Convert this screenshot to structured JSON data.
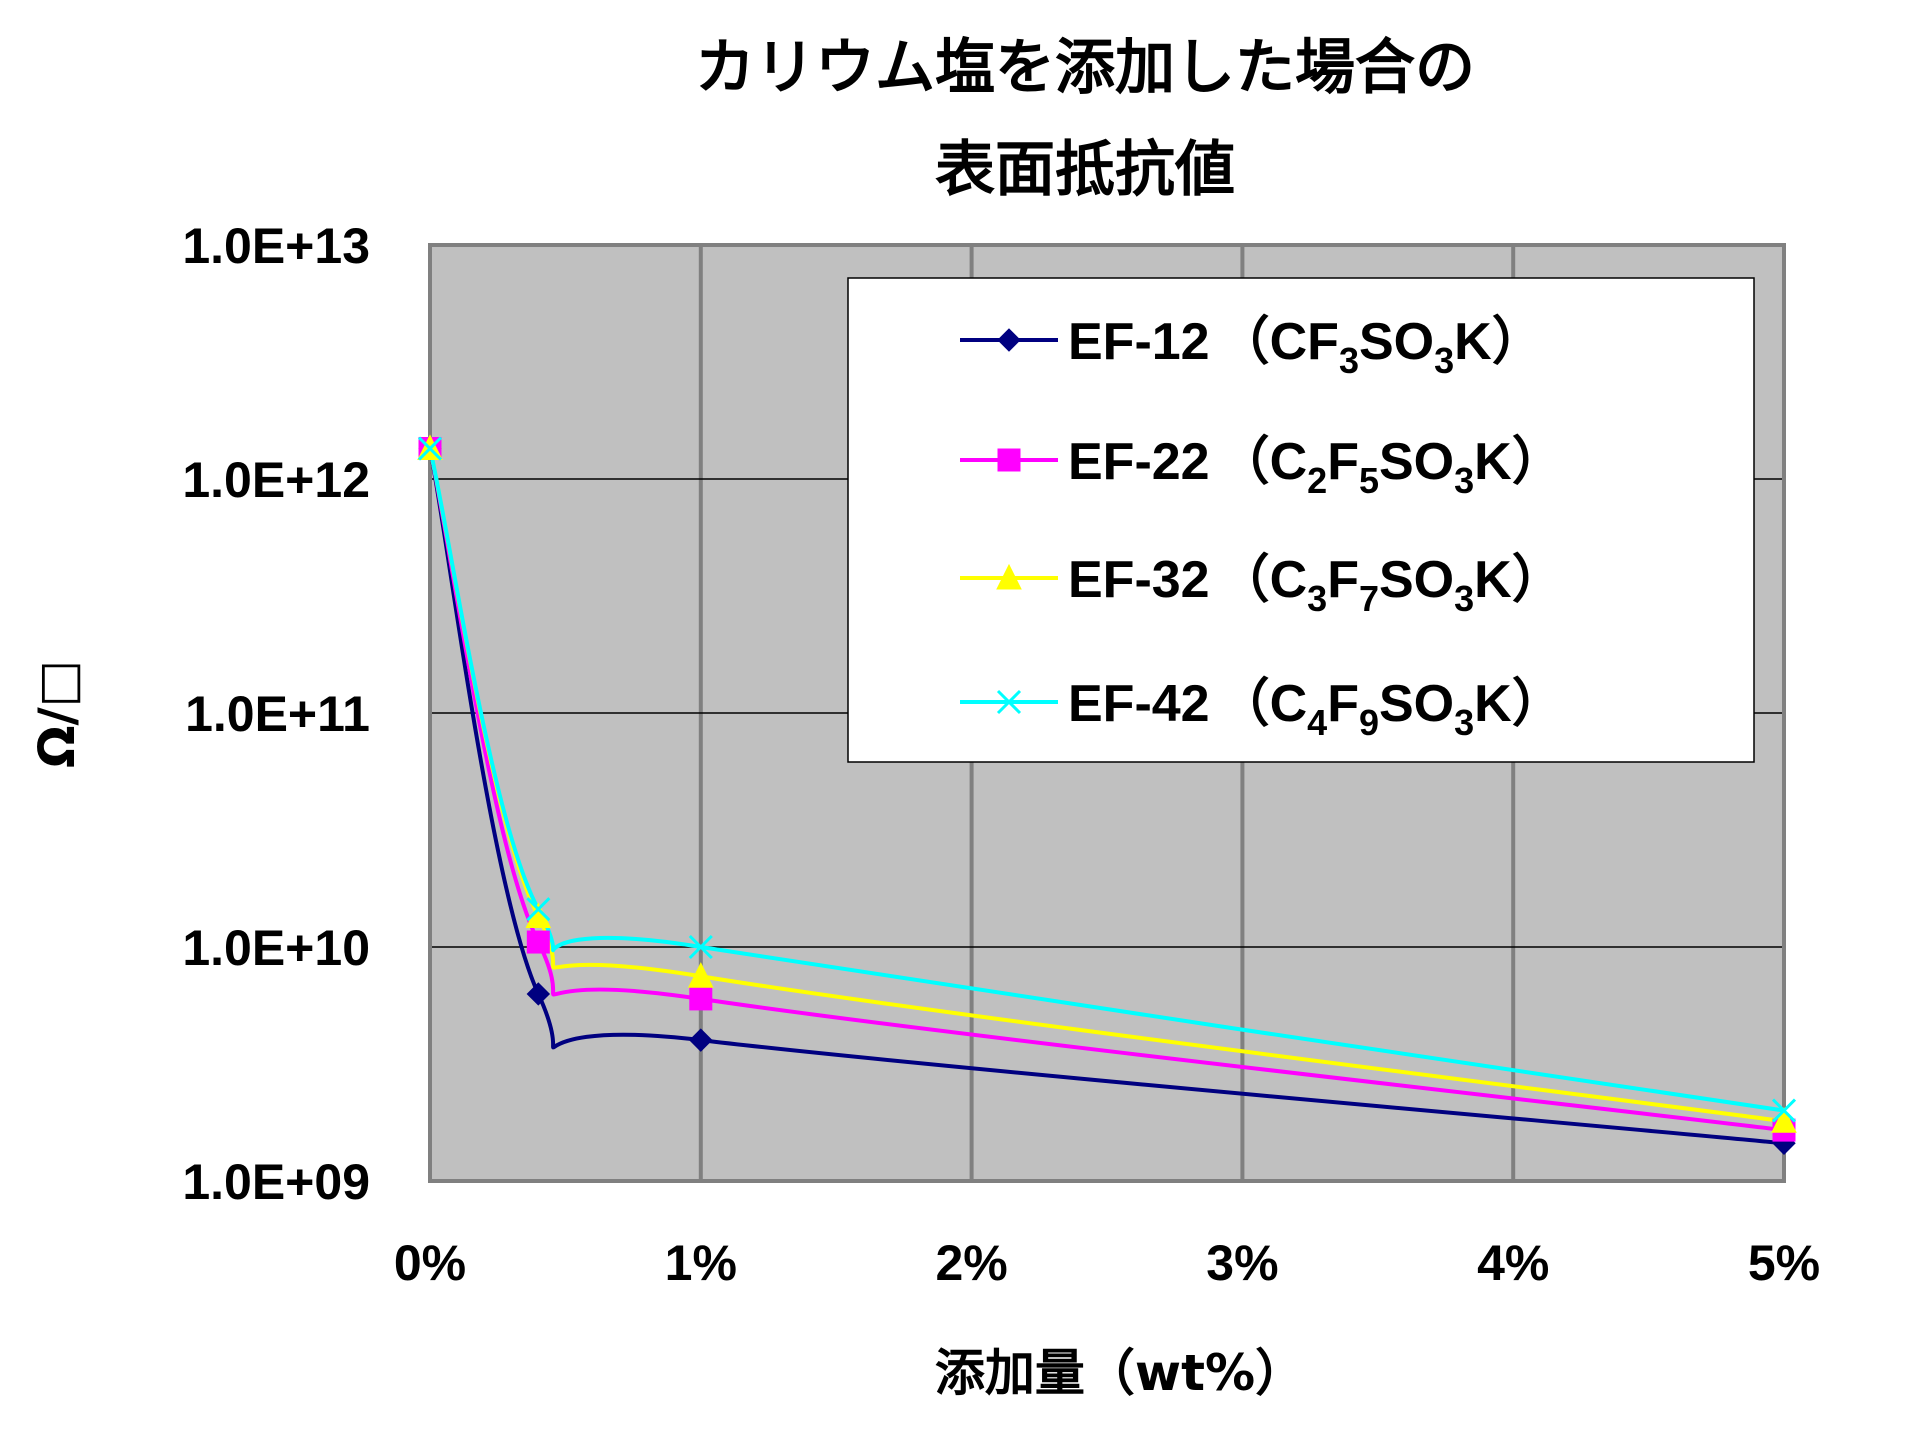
{
  "chart_data": {
    "type": "line",
    "title_lines": [
      "カリウム塩を添加した場合の",
      "表面抵抗値"
    ],
    "xlabel": "添加量（wt%）",
    "ylabel": "Ω/□",
    "x_tick_labels": [
      "0%",
      "1%",
      "2%",
      "3%",
      "4%",
      "5%"
    ],
    "x_ticks": [
      0,
      1,
      2,
      3,
      4,
      5
    ],
    "y_tick_labels": [
      "1.0E+09",
      "1.0E+10",
      "1.0E+11",
      "1.0E+12",
      "1.0E+13"
    ],
    "y_ticks": [
      1000000000.0,
      10000000000.0,
      100000000000.0,
      1000000000000.0,
      10000000000000.0
    ],
    "xlim": [
      0,
      5
    ],
    "ylim": [
      1000000000.0,
      10000000000000.0
    ],
    "y_scale": "log",
    "grid": true,
    "legend_position": "top-right",
    "plot_background": "#C0C0C0",
    "x": [
      0,
      0.4,
      1,
      5
    ],
    "series": [
      {
        "name": "EF-12",
        "formula": [
          [
            "（CF",
            ""
          ],
          [
            "3",
            "sub"
          ],
          [
            "SO",
            ""
          ],
          [
            "3",
            "sub"
          ],
          [
            "K）",
            ""
          ]
        ],
        "values": [
          1350000000000.0,
          6300000000.0,
          4000000000.0,
          1450000000.0
        ],
        "color": "#000080",
        "marker": "diamond"
      },
      {
        "name": "EF-22",
        "formula": [
          [
            "（C",
            ""
          ],
          [
            "2",
            "sub"
          ],
          [
            "F",
            ""
          ],
          [
            "5",
            "sub"
          ],
          [
            "SO",
            ""
          ],
          [
            "3",
            "sub"
          ],
          [
            "K）",
            ""
          ]
        ],
        "values": [
          1350000000000.0,
          10500000000.0,
          6000000000.0,
          1650000000.0
        ],
        "color": "#FF00FF",
        "marker": "square"
      },
      {
        "name": "EF-32",
        "formula": [
          [
            "（C",
            ""
          ],
          [
            "3",
            "sub"
          ],
          [
            "F",
            ""
          ],
          [
            "7",
            "sub"
          ],
          [
            "SO",
            ""
          ],
          [
            "3",
            "sub"
          ],
          [
            "K）",
            ""
          ]
        ],
        "values": [
          1350000000000.0,
          13500000000.0,
          7500000000.0,
          1800000000.0
        ],
        "color": "#FFFF00",
        "marker": "triangle"
      },
      {
        "name": "EF-42",
        "formula": [
          [
            "（C",
            ""
          ],
          [
            "4",
            "sub"
          ],
          [
            "F",
            ""
          ],
          [
            "9",
            "sub"
          ],
          [
            "SO",
            ""
          ],
          [
            "3",
            "sub"
          ],
          [
            "K）",
            ""
          ]
        ],
        "values": [
          1350000000000.0,
          14500000000.0,
          10000000000.0,
          2000000000.0
        ],
        "color": "#00FFFF",
        "marker": "x"
      }
    ]
  }
}
